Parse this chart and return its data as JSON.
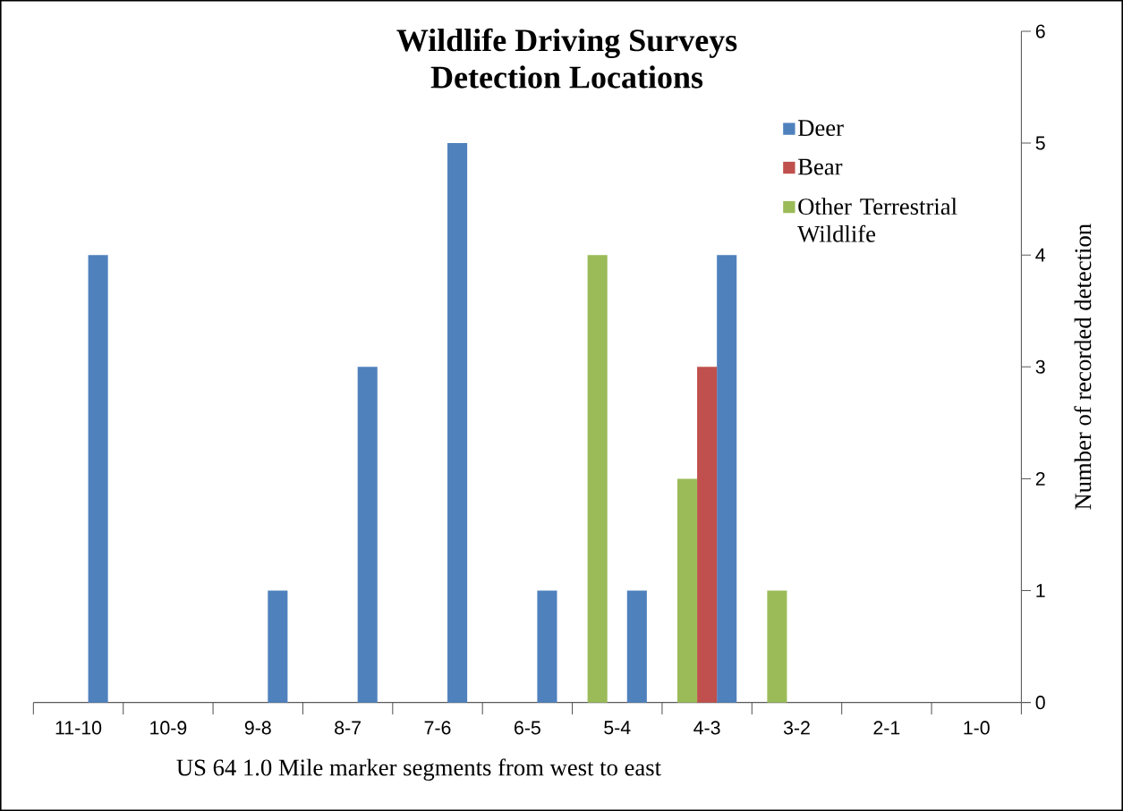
{
  "chart_data": {
    "type": "bar",
    "title": "Wildlife Driving Surveys\nDetection Locations",
    "xlabel": "US 64 1.0 Mile marker segments from west to east",
    "ylabel": "Number of recorded detection",
    "categories": [
      "11-10",
      "10-9",
      "9-8",
      "8-7",
      "7-6",
      "6-5",
      "5-4",
      "4-3",
      "3-2",
      "2-1",
      "1-0"
    ],
    "series": [
      {
        "name": "Deer",
        "color": "#4f81bd",
        "values": [
          4,
          0,
          1,
          3,
          5,
          1,
          1,
          4,
          0,
          0,
          0
        ]
      },
      {
        "name": "Bear",
        "color": "#c0504d",
        "values": [
          0,
          0,
          0,
          0,
          0,
          0,
          0,
          3,
          0,
          0,
          0
        ]
      },
      {
        "name": "Other Terrestrial Wildlife",
        "color": "#9bbb59",
        "values": [
          0,
          0,
          0,
          0,
          0,
          0,
          4,
          2,
          1,
          0,
          0
        ]
      }
    ],
    "ylim": [
      0,
      6
    ],
    "yticks": [
      0,
      1,
      2,
      3,
      4,
      5,
      6
    ],
    "legend": "top right"
  }
}
